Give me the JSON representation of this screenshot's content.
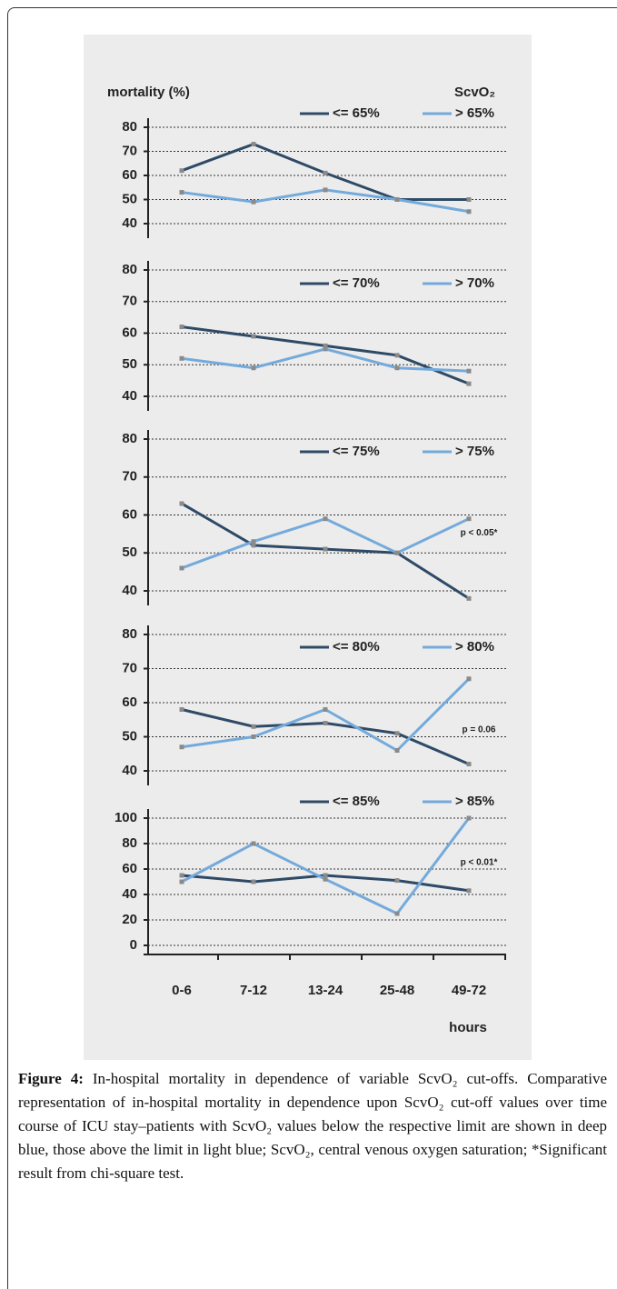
{
  "chart_data": [
    {
      "type": "line",
      "y_label": "mortality (%)",
      "legend_title": "ScvO₂",
      "ylim": [
        40,
        80
      ],
      "yticks": [
        40,
        50,
        60,
        70,
        80
      ],
      "grid": true,
      "series": [
        {
          "name": "<= 65%",
          "color": "#2e4a66",
          "values": [
            62,
            73,
            61,
            50,
            50
          ]
        },
        {
          "name": "> 65%",
          "color": "#74aadb",
          "values": [
            53,
            49,
            54,
            50,
            45
          ]
        }
      ]
    },
    {
      "type": "line",
      "ylim": [
        40,
        80
      ],
      "yticks": [
        40,
        50,
        60,
        70,
        80
      ],
      "grid": true,
      "series": [
        {
          "name": "<= 70%",
          "color": "#2e4a66",
          "values": [
            62,
            59,
            56,
            53,
            44
          ]
        },
        {
          "name": "> 70%",
          "color": "#74aadb",
          "values": [
            52,
            49,
            55,
            49,
            48
          ]
        }
      ]
    },
    {
      "type": "line",
      "ylim": [
        40,
        80
      ],
      "yticks": [
        40,
        50,
        60,
        70,
        80
      ],
      "grid": true,
      "annotation": "p < 0.05*",
      "series": [
        {
          "name": "<= 75%",
          "color": "#2e4a66",
          "values": [
            63,
            52,
            51,
            50,
            38
          ]
        },
        {
          "name": "> 75%",
          "color": "#74aadb",
          "values": [
            46,
            53,
            59,
            50,
            59
          ]
        }
      ]
    },
    {
      "type": "line",
      "ylim": [
        40,
        80
      ],
      "yticks": [
        40,
        50,
        60,
        70,
        80
      ],
      "grid": true,
      "annotation": "p = 0.06",
      "series": [
        {
          "name": "<= 80%",
          "color": "#2e4a66",
          "values": [
            58,
            53,
            54,
            51,
            42
          ]
        },
        {
          "name": "> 80%",
          "color": "#74aadb",
          "values": [
            47,
            50,
            58,
            46,
            67
          ]
        }
      ]
    },
    {
      "type": "line",
      "ylim": [
        0,
        100
      ],
      "yticks": [
        0,
        20,
        40,
        60,
        80,
        100
      ],
      "grid": true,
      "annotation": "p < 0.01*",
      "categories": [
        "0-6",
        "7-12",
        "13-24",
        "25-48",
        "49-72"
      ],
      "x_label": "hours",
      "series": [
        {
          "name": "<= 85%",
          "color": "#2e4a66",
          "values": [
            55,
            50,
            55,
            51,
            43
          ]
        },
        {
          "name": "> 85%",
          "color": "#74aadb",
          "values": [
            50,
            80,
            52,
            25,
            100
          ]
        }
      ]
    }
  ],
  "caption": {
    "label": "Figure 4:",
    "text": "In-hospital mortality in dependence of variable ScvO₂ cut-offs. Comparative representation of in-hospital mortality in dependence upon ScvO₂ cut-off values over time course of ICU stay–patients with ScvO₂ values below the respective limit are shown in deep blue, those above the limit in light blue; ScvO₂, central venous oxygen saturation; *Significant result from chi-square test."
  }
}
